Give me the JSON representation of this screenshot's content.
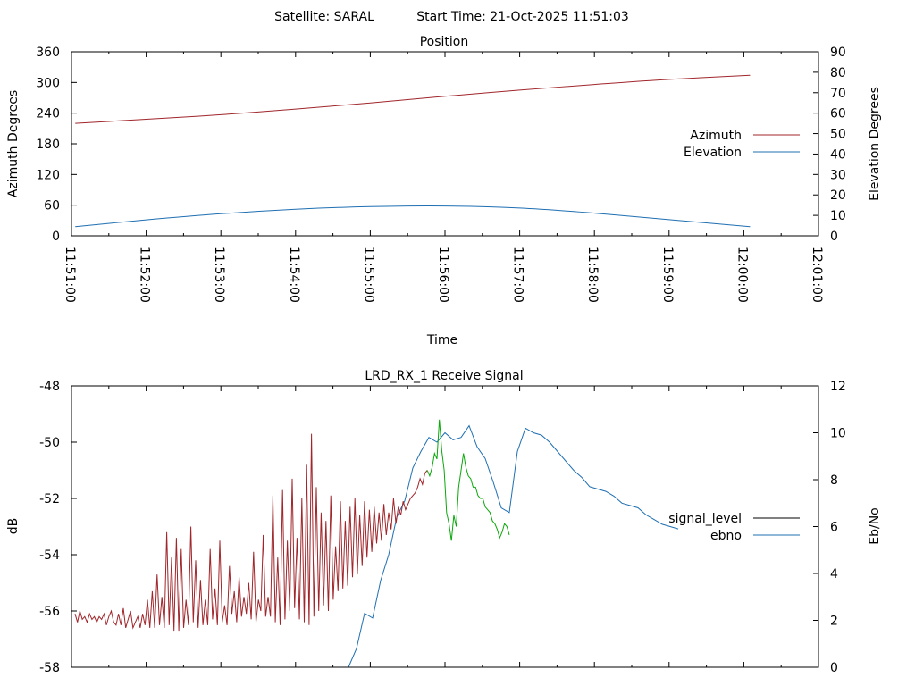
{
  "header": {
    "satellite": "Satellite: SARAL",
    "start_time": "Start Time: 21-Oct-2025 11:51:03"
  },
  "chart_data": [
    {
      "type": "line",
      "title": "Position",
      "xlabel": "Time",
      "ylabel": "Azimuth Degrees",
      "y2label": "Elevation Degrees",
      "xlim": [
        "11:51:00",
        "12:01:00"
      ],
      "x_ticks": [
        "11:51:00",
        "11:52:00",
        "11:53:00",
        "11:54:00",
        "11:55:00",
        "11:56:00",
        "11:57:00",
        "11:58:00",
        "11:59:00",
        "12:00:00",
        "12:01:00"
      ],
      "ylim": [
        0,
        360
      ],
      "y_ticks": [
        "0",
        "60",
        "120",
        "180",
        "240",
        "300",
        "360"
      ],
      "y2lim": [
        0,
        90
      ],
      "y2_ticks": [
        "0",
        "10",
        "20",
        "30",
        "40",
        "50",
        "60",
        "70",
        "80",
        "90"
      ],
      "legend": "right",
      "grid": false,
      "series": [
        {
          "name": "Azimuth",
          "axis": "y",
          "color": "#a0262b",
          "x": [
            "11:51:03",
            "11:52:00",
            "11:53:00",
            "11:54:00",
            "11:55:00",
            "11:56:00",
            "11:57:00",
            "11:58:00",
            "11:59:00",
            "12:00:05"
          ],
          "values": [
            220,
            228,
            237,
            248,
            260,
            273,
            285,
            296,
            306,
            314
          ]
        },
        {
          "name": "Elevation",
          "axis": "y2",
          "color": "#1f6fb2",
          "x": [
            "11:51:03",
            "11:52:00",
            "11:53:00",
            "11:54:00",
            "11:55:00",
            "11:56:00",
            "11:57:00",
            "11:58:00",
            "11:59:00",
            "12:00:05"
          ],
          "values": [
            4.5,
            7.8,
            10.8,
            13.0,
            14.3,
            14.6,
            13.6,
            11.1,
            7.9,
            4.5
          ]
        }
      ]
    },
    {
      "type": "line",
      "title": "LRD_RX_1 Receive Signal",
      "ylabel": "dB",
      "y2label": "Eb/No",
      "ylim": [
        -58,
        -48
      ],
      "y_ticks": [
        "-58",
        "-56",
        "-54",
        "-52",
        "-50",
        "-48"
      ],
      "y2lim": [
        0,
        12
      ],
      "y2_ticks": [
        "0",
        "2",
        "4",
        "6",
        "8",
        "10",
        "12"
      ],
      "legend": "right",
      "grid": false,
      "series": [
        {
          "name": "signal_level",
          "axis": "y",
          "color": "#a0262b",
          "segment_color_after_lock": "#0aa80a",
          "x": [
            0,
            3,
            6,
            9,
            12,
            15,
            18,
            21,
            24,
            27,
            30,
            33,
            36,
            39,
            42,
            45,
            48,
            51,
            54,
            57,
            60,
            63,
            66,
            69,
            72,
            75,
            78,
            81,
            84,
            87,
            90,
            93,
            96,
            99,
            102,
            105,
            108,
            111,
            114,
            117,
            120,
            123,
            126,
            129,
            132,
            135,
            138,
            141,
            144,
            147,
            150,
            153,
            156,
            159,
            162,
            165,
            168,
            171,
            174,
            177,
            180,
            183,
            186,
            189,
            192,
            195,
            198,
            201,
            204,
            207,
            210,
            213,
            216,
            219,
            222,
            225,
            228,
            231,
            234,
            237,
            240,
            243,
            246,
            249,
            252,
            255,
            258,
            261,
            264,
            267,
            270,
            273,
            276,
            279,
            282,
            285,
            288,
            291,
            294,
            297,
            300,
            303,
            306,
            309,
            312,
            315,
            318,
            321,
            324,
            327,
            330,
            333,
            336,
            339,
            342,
            345,
            348,
            351,
            354,
            357,
            360,
            363,
            366,
            369,
            372,
            375,
            378,
            381,
            384,
            387,
            390,
            393,
            396,
            399,
            402,
            405,
            408,
            411,
            414,
            417,
            420,
            423,
            426,
            429,
            432,
            435,
            438,
            441,
            444,
            447,
            450,
            453,
            456,
            459,
            462,
            465,
            468,
            471,
            474,
            477,
            480,
            483,
            486,
            489,
            492,
            495,
            498,
            501,
            504,
            507,
            510,
            513,
            516,
            519,
            522,
            525,
            528,
            531,
            534,
            537,
            540
          ],
          "values": [
            -56.1,
            -56.4,
            -56.0,
            -56.3,
            -56.2,
            -56.4,
            -56.1,
            -56.3,
            -56.2,
            -56.4,
            -56.2,
            -56.3,
            -56.1,
            -56.5,
            -56.2,
            -56.0,
            -56.4,
            -56.5,
            -56.1,
            -56.5,
            -55.9,
            -56.6,
            -56.3,
            -56.0,
            -56.6,
            -56.4,
            -56.2,
            -56.6,
            -56.1,
            -56.5,
            -55.6,
            -56.6,
            -55.3,
            -56.6,
            -54.7,
            -56.5,
            -55.5,
            -56.6,
            -53.2,
            -56.5,
            -54.1,
            -56.7,
            -53.4,
            -56.7,
            -53.8,
            -56.6,
            -55.6,
            -56.5,
            -53.0,
            -56.4,
            -54.2,
            -56.6,
            -54.9,
            -56.5,
            -55.6,
            -56.5,
            -53.8,
            -56.3,
            -55.2,
            -56.5,
            -53.5,
            -56.4,
            -55.8,
            -56.5,
            -54.4,
            -56.1,
            -55.3,
            -56.4,
            -54.8,
            -56.2,
            -55.5,
            -56.1,
            -55.0,
            -56.3,
            -53.9,
            -56.4,
            -55.6,
            -56.0,
            -53.3,
            -56.2,
            -55.5,
            -56.2,
            -51.9,
            -56.4,
            -54.1,
            -56.5,
            -51.7,
            -56.3,
            -53.5,
            -56.0,
            -51.3,
            -55.9,
            -53.4,
            -56.3,
            -52.0,
            -56.4,
            -50.8,
            -56.5,
            -49.7,
            -56.2,
            -51.6,
            -56.0,
            -52.5,
            -55.8,
            -52.8,
            -56.0,
            -51.9,
            -55.6,
            -53.7,
            -55.3,
            -52.1,
            -55.2,
            -52.8,
            -55.1,
            -52.3,
            -54.8,
            -52.0,
            -54.7,
            -52.6,
            -54.4,
            -52.1,
            -54.1,
            -52.4,
            -53.9,
            -52.3,
            -53.6,
            -52.5,
            -53.5,
            -52.2,
            -53.3,
            -52.5,
            -53.1,
            -52.0,
            -52.9,
            -52.3,
            -52.6,
            -52.1,
            -52.4,
            -52.2,
            -52.0,
            -51.9,
            -51.8,
            -51.6,
            -51.3,
            -51.5,
            -51.1,
            -51.0,
            -51.2,
            -50.9,
            -50.4,
            -50.6,
            -49.2,
            -50.3,
            -51.0,
            -52.5,
            -52.9,
            -53.5,
            -52.6,
            -53.0,
            -51.6,
            -51.0,
            -50.4,
            -50.9,
            -51.2,
            -51.3,
            -51.6,
            -51.6,
            -51.9,
            -52.0,
            -52.0,
            -52.3,
            -52.4,
            -52.5,
            -52.8,
            -52.9,
            -53.1,
            -53.4,
            -53.2,
            -52.9,
            -53.0,
            -53.3
          ]
        },
        {
          "name": "ebno",
          "axis": "y2",
          "color": "#1f6fb2",
          "x": [
            340,
            350,
            360,
            370,
            380,
            390,
            400,
            410,
            420,
            430,
            440,
            450,
            460,
            470,
            480,
            490,
            500,
            510,
            520,
            530,
            540,
            550,
            560,
            570,
            580,
            590,
            600,
            610,
            620,
            630,
            640,
            650,
            660,
            670,
            680,
            690,
            700,
            710,
            720,
            730,
            740,
            750
          ],
          "values": [
            0.0,
            0.8,
            2.3,
            2.1,
            3.7,
            4.8,
            6.4,
            7.1,
            8.5,
            9.2,
            9.8,
            9.6,
            10.0,
            9.7,
            9.8,
            10.3,
            9.4,
            8.9,
            7.9,
            6.8,
            6.6,
            9.2,
            10.2,
            10.0,
            9.9,
            9.6,
            9.2,
            8.8,
            8.4,
            8.1,
            7.7,
            7.6,
            7.5,
            7.3,
            7.0,
            6.9,
            6.8,
            6.5,
            6.3,
            6.1,
            6.0,
            5.9
          ]
        }
      ]
    }
  ]
}
